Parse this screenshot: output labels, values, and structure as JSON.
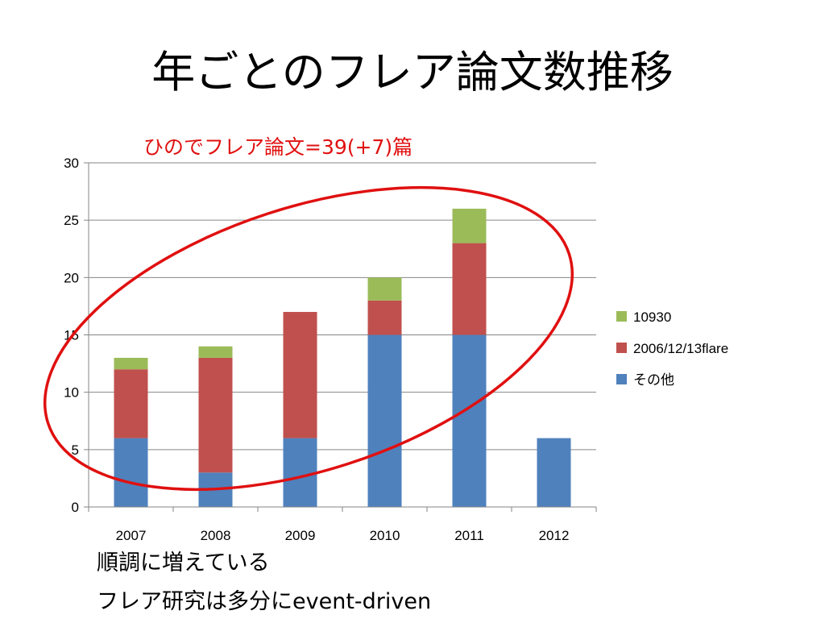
{
  "slide": {
    "title": "年ごとのフレア論文数推移",
    "annotation": "ひのでフレア論文=39(+7)篇",
    "lines": [
      "順調に増えている",
      "フレア研究は多分にevent-driven"
    ]
  },
  "colors": {
    "annotation": "#e01010",
    "ellipse": "#e01010",
    "axis": "#868686",
    "grid": "#868686"
  },
  "chart_data": {
    "type": "bar",
    "stacked": true,
    "categories": [
      "2007",
      "2008",
      "2009",
      "2010",
      "2011",
      "2012"
    ],
    "series": [
      {
        "name": "その他",
        "color": "#4f81bd",
        "values": [
          6,
          3,
          6,
          15,
          15,
          6
        ]
      },
      {
        "name": "2006/12/13flare",
        "color": "#c0504d",
        "values": [
          6,
          10,
          11,
          3,
          8,
          0
        ]
      },
      {
        "name": "10930",
        "color": "#9bbb59",
        "values": [
          1,
          1,
          0,
          2,
          3,
          0
        ]
      }
    ],
    "ylim": [
      0,
      30
    ],
    "yticks": [
      0,
      5,
      10,
      15,
      20,
      25,
      30
    ],
    "grid": true,
    "legend": "right",
    "legend_order": [
      "10930",
      "2006/12/13flare",
      "その他"
    ]
  }
}
